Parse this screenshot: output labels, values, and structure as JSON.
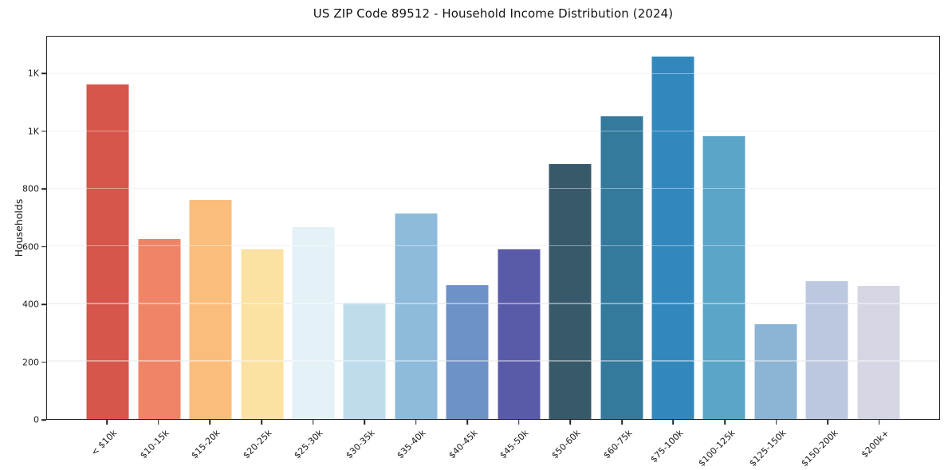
{
  "figure": {
    "background": "#ffffff"
  },
  "chart_data": {
    "type": "bar",
    "title": "US ZIP Code 89512 - Household Income Distribution (2024)",
    "xlabel": "",
    "ylabel": "Households",
    "categories": [
      "< $10k",
      "$10-15k",
      "$15-20k",
      "$20-25k",
      "$25-30k",
      "$30-35k",
      "$35-40k",
      "$40-45k",
      "$45-50k",
      "$50-60k",
      "$60-75k",
      "$75-100k",
      "$100-125k",
      "$125-150k",
      "$150-200k",
      "$200k+"
    ],
    "values": [
      1165,
      625,
      762,
      590,
      668,
      405,
      715,
      465,
      590,
      888,
      1052,
      1261,
      985,
      330,
      479,
      462
    ],
    "bar_colors": [
      "#d6564c",
      "#f08466",
      "#fbbd7c",
      "#fce2a2",
      "#e4f1f6",
      "#bedcec",
      "#8ebbdb",
      "#6c92c8",
      "#5a5ba8",
      "#38596a",
      "#337a9c",
      "#3288bd",
      "#5aa5c8",
      "#8cb4d4",
      "#bcc8e0",
      "#d5d6e4"
    ],
    "ylim": [
      0,
      1330
    ],
    "yticks": [
      {
        "value": 0,
        "label": "0"
      },
      {
        "value": 200,
        "label": "200"
      },
      {
        "value": 400,
        "label": "400"
      },
      {
        "value": 600,
        "label": "600"
      },
      {
        "value": 800,
        "label": "800"
      },
      {
        "value": 1000,
        "label": "1K"
      },
      {
        "value": 1200,
        "label": "1K"
      }
    ],
    "grid": "horizontal",
    "legend": "none",
    "axis_color": "#242424",
    "gridline_color": "#e8e8e8"
  }
}
